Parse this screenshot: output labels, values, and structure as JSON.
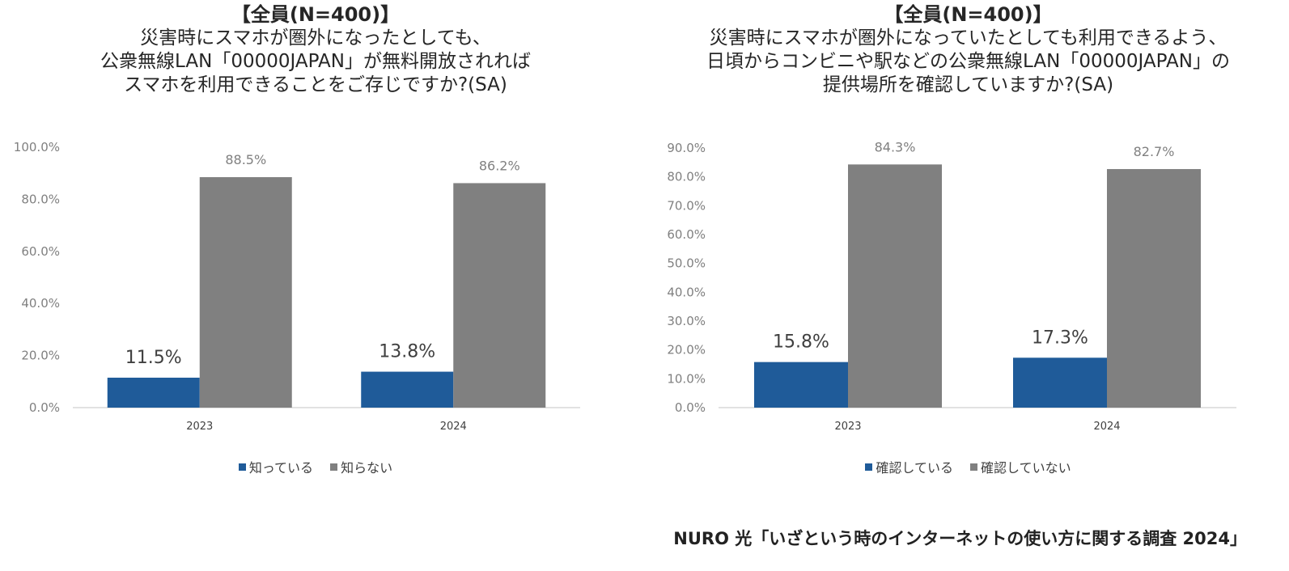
{
  "chart_data": [
    {
      "type": "bar",
      "title_lines": [
        "【全員(N=400)】",
        "災害時にスマホが圏外になったとしても、",
        "公衆無線LAN「00000JAPAN」が無料開放されれば",
        "スマホを利用できることをご存じですか?(SA)"
      ],
      "categories": [
        "2023",
        "2024"
      ],
      "series": [
        {
          "name": "知っている",
          "values": [
            11.5,
            13.8
          ],
          "color": "#1f5b99"
        },
        {
          "name": "知らない",
          "values": [
            88.5,
            86.2
          ],
          "color": "#808080"
        }
      ],
      "data_labels": [
        [
          "11.5%",
          "13.8%"
        ],
        [
          "88.5%",
          "86.2%"
        ]
      ],
      "ylim": [
        0,
        100
      ],
      "y_ticks": [
        0,
        20,
        40,
        60,
        80,
        100
      ],
      "y_tick_labels": [
        "0.0%",
        "20.0%",
        "40.0%",
        "60.0%",
        "80.0%",
        "100.0%"
      ],
      "grid": false,
      "legend": "bottom"
    },
    {
      "type": "bar",
      "title_lines": [
        "【全員(N=400)】",
        "災害時にスマホが圏外になっていたとしても利用できるよう、",
        "日頃からコンビニや駅などの公衆無線LAN「00000JAPAN」の",
        "提供場所を確認していますか?(SA)"
      ],
      "categories": [
        "2023",
        "2024"
      ],
      "series": [
        {
          "name": "確認している",
          "values": [
            15.8,
            17.3
          ],
          "color": "#1f5b99"
        },
        {
          "name": "確認していない",
          "values": [
            84.3,
            82.7
          ],
          "color": "#808080"
        }
      ],
      "data_labels": [
        [
          "15.8%",
          "17.3%"
        ],
        [
          "84.3%",
          "82.7%"
        ]
      ],
      "ylim": [
        0,
        90
      ],
      "y_ticks": [
        0,
        10,
        20,
        30,
        40,
        50,
        60,
        70,
        80,
        90
      ],
      "y_tick_labels": [
        "0.0%",
        "10.0%",
        "20.0%",
        "30.0%",
        "40.0%",
        "50.0%",
        "60.0%",
        "70.0%",
        "80.0%",
        "90.0%"
      ],
      "grid": false,
      "legend": "bottom"
    }
  ],
  "footer": {
    "source_note": "NURO 光「いざという時のインターネットの使い方に関する調査 2024」"
  }
}
